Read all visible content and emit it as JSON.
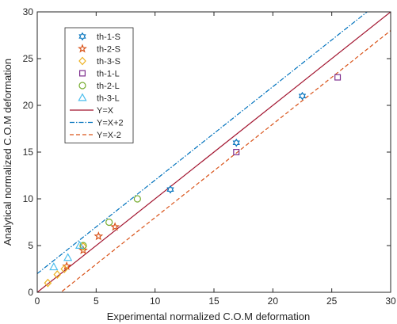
{
  "chart_data": {
    "type": "scatter",
    "title": "",
    "xlabel": "Experimental normalized C.O.M deformation",
    "ylabel": "Analytical normalized C.O.M deformation",
    "xlim": [
      0,
      30
    ],
    "ylim": [
      0,
      30
    ],
    "xticks": [
      0,
      5,
      10,
      15,
      20,
      25,
      30
    ],
    "yticks": [
      0,
      5,
      10,
      15,
      20,
      25,
      30
    ],
    "grid": false,
    "legend_position": "top-left",
    "series": [
      {
        "name": "th-1-S",
        "marker": "hexagram",
        "color": "#0072BD",
        "x": [
          11.3,
          16.9,
          22.5
        ],
        "y": [
          11.0,
          16.0,
          21.0
        ]
      },
      {
        "name": "th-2-S",
        "marker": "pentagram",
        "color": "#D95319",
        "x": [
          2.5,
          3.9,
          5.2,
          6.6
        ],
        "y": [
          2.8,
          4.5,
          6.0,
          7.0
        ]
      },
      {
        "name": "th-3-S",
        "marker": "diamond",
        "color": "#EDB120",
        "x": [
          0.9,
          1.7,
          2.3,
          3.9
        ],
        "y": [
          1.0,
          1.9,
          2.5,
          4.9
        ]
      },
      {
        "name": "th-1-L",
        "marker": "square",
        "color": "#7E2F8E",
        "x": [
          16.9,
          25.5
        ],
        "y": [
          15.0,
          23.0
        ]
      },
      {
        "name": "th-2-L",
        "marker": "circle",
        "color": "#77AC30",
        "x": [
          3.9,
          6.1,
          8.5
        ],
        "y": [
          5.0,
          7.5,
          10.0
        ]
      },
      {
        "name": "th-3-L",
        "marker": "triangle",
        "color": "#4DBEEE",
        "x": [
          1.4,
          2.6,
          3.6
        ],
        "y": [
          2.7,
          3.7,
          5.0
        ]
      }
    ],
    "lines": [
      {
        "name": "Y=X",
        "style": "solid",
        "color": "#A2142F",
        "slope": 1,
        "intercept": 0
      },
      {
        "name": "Y=X+2",
        "style": "dashdot",
        "color": "#0072BD",
        "slope": 1,
        "intercept": 2
      },
      {
        "name": "Y=X-2",
        "style": "dashed",
        "color": "#D95319",
        "slope": 1,
        "intercept": -2
      }
    ]
  }
}
